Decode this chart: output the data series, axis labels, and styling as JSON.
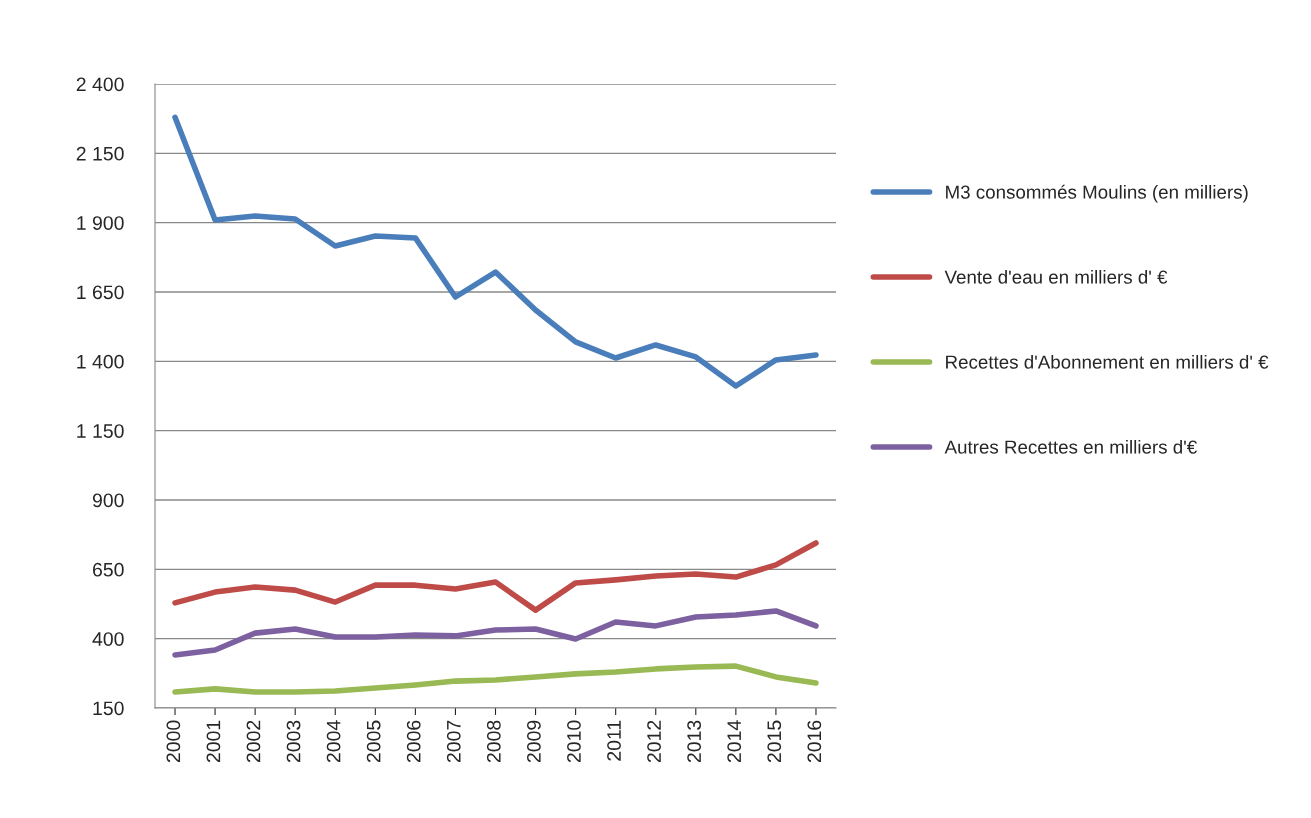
{
  "chart_data": {
    "type": "line",
    "categories": [
      "2000",
      "2001",
      "2002",
      "2003",
      "2004",
      "2005",
      "2006",
      "2007",
      "2008",
      "2009",
      "2010",
      "2011",
      "2012",
      "2013",
      "2014",
      "2015",
      "2016"
    ],
    "series": [
      {
        "name": "M3 consommés Moulins (en milliers)",
        "color": "#4a7ebb",
        "values": [
          2280,
          1910,
          1924,
          1913,
          1816,
          1852,
          1845,
          1632,
          1722,
          1585,
          1470,
          1412,
          1459,
          1416,
          1311,
          1405,
          1423
        ]
      },
      {
        "name": "Vente d'eau en milliers d' €",
        "color": "#be4b48",
        "values": [
          529,
          568,
          586,
          575,
          532,
          593,
          593,
          579,
          604,
          503,
          601,
          612,
          626,
          633,
          622,
          666,
          745
        ]
      },
      {
        "name": "Recettes d'Abonnement en milliers d' €",
        "color": "#98b954",
        "values": [
          208,
          219,
          208,
          208,
          211,
          222,
          233,
          247,
          251,
          262,
          273,
          280,
          291,
          298,
          301,
          262,
          240
        ]
      },
      {
        "name": "Autres Recettes en milliers d'€",
        "color": "#7d60a0",
        "values": [
          341,
          359,
          420,
          435,
          406,
          406,
          413,
          410,
          431,
          435,
          399,
          460,
          446,
          478,
          485,
          500,
          446
        ]
      }
    ],
    "ylim": [
      150,
      2400
    ],
    "yticks": [
      150,
      400,
      650,
      900,
      {
        "value": 1150,
        "label": "1 150"
      },
      {
        "value": 1400,
        "label": "1 400"
      },
      {
        "value": 1650,
        "label": "1 650"
      },
      {
        "value": 1900,
        "label": "1 900"
      },
      {
        "value": 2150,
        "label": "2 150"
      },
      {
        "value": 2400,
        "label": "2 400"
      }
    ],
    "grid": "y",
    "legend": "right",
    "line_style": "solid",
    "marker": "none"
  }
}
